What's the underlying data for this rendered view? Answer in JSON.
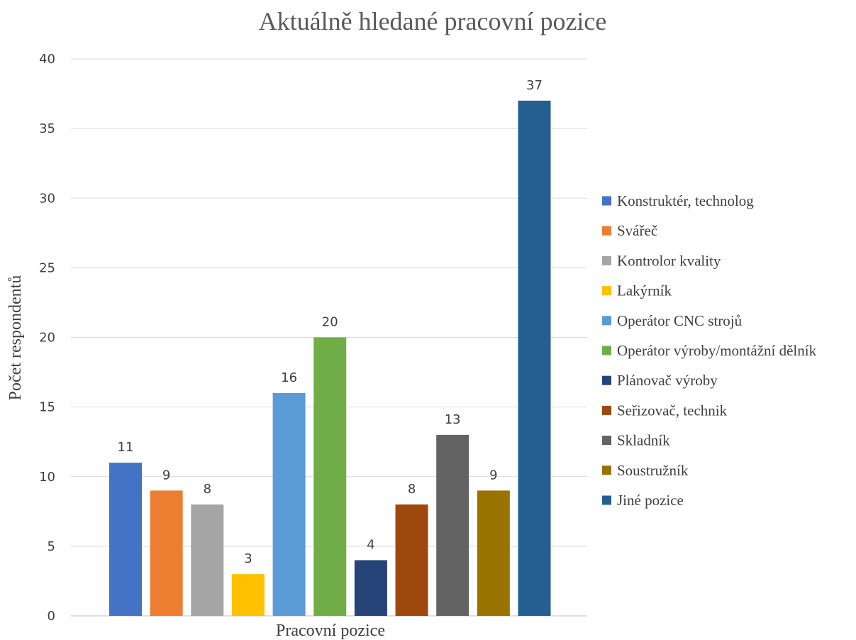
{
  "chart_data": {
    "type": "bar",
    "title": "Aktuálně hledané pracovní pozice",
    "xlabel": "Pracovní pozice",
    "ylabel": "Počet respondentů",
    "ylim": [
      0,
      40
    ],
    "yticks": [
      0,
      5,
      10,
      15,
      20,
      25,
      30,
      35,
      40
    ],
    "grid": true,
    "legend_position": "right",
    "data_labels": true,
    "series": [
      {
        "name": "Konstruktér, technolog",
        "values": [
          11
        ],
        "color": "#4472C4"
      },
      {
        "name": "Svářeč",
        "values": [
          9
        ],
        "color": "#ED7D31"
      },
      {
        "name": "Kontrolor kvality",
        "values": [
          8
        ],
        "color": "#A5A5A5"
      },
      {
        "name": "Lakýrník",
        "values": [
          3
        ],
        "color": "#FFC000"
      },
      {
        "name": "Operátor CNC strojů",
        "values": [
          16
        ],
        "color": "#5B9BD5"
      },
      {
        "name": "Operátor výroby/montážní dělník",
        "values": [
          20
        ],
        "color": "#70AD47"
      },
      {
        "name": "Plánovač výroby",
        "values": [
          4
        ],
        "color": "#264478"
      },
      {
        "name": "Seřizovač, technik",
        "values": [
          8
        ],
        "color": "#9E480E"
      },
      {
        "name": "Skladník",
        "values": [
          13
        ],
        "color": "#636363"
      },
      {
        "name": "Soustružník",
        "values": [
          9
        ],
        "color": "#997300"
      },
      {
        "name": "Jiné pozice",
        "values": [
          37
        ],
        "color": "#255E91"
      }
    ]
  }
}
